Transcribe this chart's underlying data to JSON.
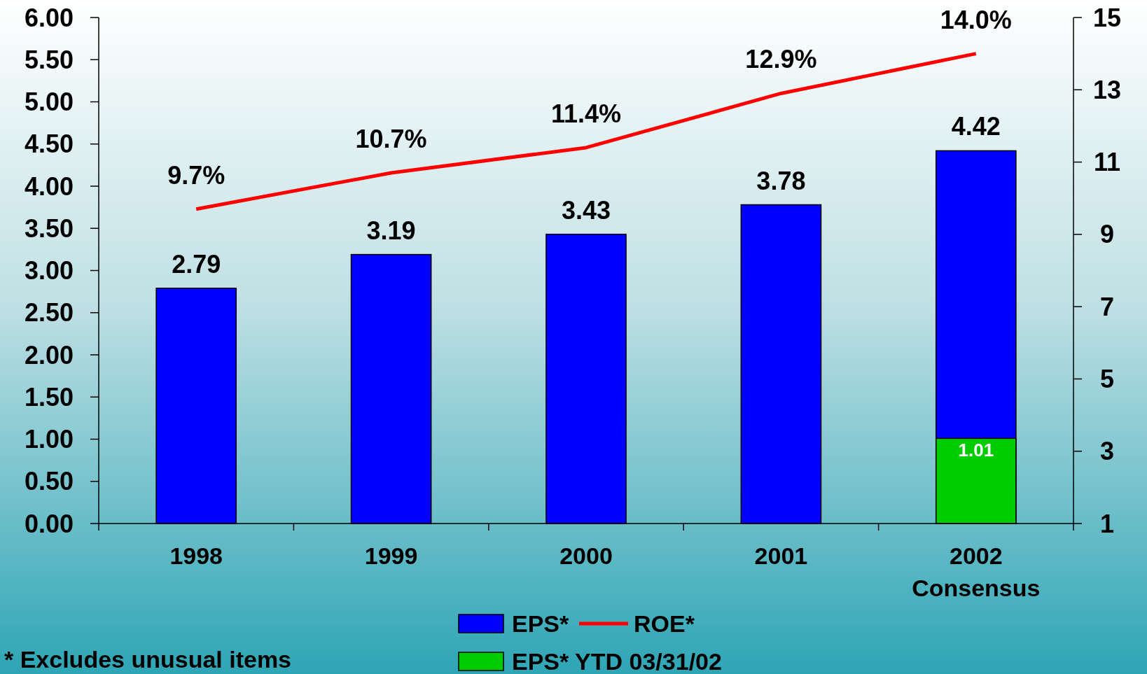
{
  "chart_data": {
    "type": "bar",
    "categories": [
      "1998",
      "1999",
      "2000",
      "2001",
      "2002\nConsensus"
    ],
    "series": [
      {
        "name": "EPS*",
        "color": "#0000ff",
        "values": [
          2.79,
          3.19,
          3.43,
          3.78,
          4.42
        ],
        "value_labels": [
          "2.79",
          "3.19",
          "3.43",
          "3.78",
          "4.42"
        ]
      },
      {
        "name": "EPS* YTD 03/31/02",
        "color": "#00cc00",
        "values": [
          null,
          null,
          null,
          null,
          1.01
        ],
        "value_labels": [
          null,
          null,
          null,
          null,
          "1.01"
        ]
      },
      {
        "name": "ROE*",
        "type": "line",
        "axis": "y2",
        "color": "#ff0000",
        "values": [
          9.7,
          10.7,
          11.4,
          12.9,
          14.0
        ],
        "value_labels": [
          "9.7%",
          "10.7%",
          "11.4%",
          "12.9%",
          "14.0%"
        ]
      }
    ],
    "ylim": [
      0,
      6
    ],
    "yticks": [
      {
        "value": 0,
        "label": "0.00"
      },
      {
        "value": 0.5,
        "label": "0.50"
      },
      {
        "value": 1,
        "label": "1.00"
      },
      {
        "value": 1.5,
        "label": "1.50"
      },
      {
        "value": 2,
        "label": "2.00"
      },
      {
        "value": 2.5,
        "label": "2.50"
      },
      {
        "value": 3,
        "label": "3.00"
      },
      {
        "value": 3.5,
        "label": "3.50"
      },
      {
        "value": 4,
        "label": "4.00"
      },
      {
        "value": 4.5,
        "label": "4.50"
      },
      {
        "value": 5,
        "label": "5.00"
      },
      {
        "value": 5.5,
        "label": "5.50"
      },
      {
        "value": 6,
        "label": "6.00"
      }
    ],
    "y2lim": [
      1,
      15
    ],
    "y2ticks": [
      1,
      3,
      5,
      7,
      9,
      11,
      13,
      15
    ],
    "legend": "bottom",
    "annotations": [
      "* Excludes unusual items"
    ]
  }
}
